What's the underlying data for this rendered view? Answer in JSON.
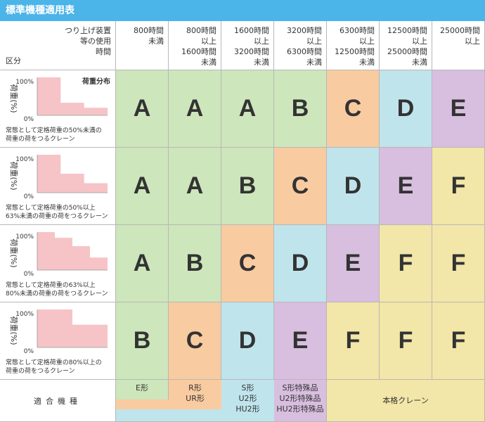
{
  "title": "標準機種適用表",
  "header": {
    "corner_top": [
      "つり上げ装置",
      "等の使用",
      "時間"
    ],
    "corner_bottom": "区分",
    "columns": [
      [
        "800時間",
        "未満"
      ],
      [
        "800時間",
        "以上",
        "1600時間",
        "未満"
      ],
      [
        "1600時間",
        "以上",
        "3200時間",
        "未満"
      ],
      [
        "3200時間",
        "以上",
        "6300時間",
        "未満"
      ],
      [
        "6300時間",
        "以上",
        "12500時間",
        "未満"
      ],
      [
        "12500時間",
        "以上",
        "25000時間",
        "未満"
      ],
      [
        "25000時間",
        "以上"
      ]
    ]
  },
  "rows": [
    {
      "chart_title": "荷重分布",
      "axis_label": "荷重(%)",
      "y_max": "100%",
      "y_min": "0%",
      "load_steps": [
        1.0,
        0.33,
        0.2
      ],
      "desc": [
        "常態として定格荷重の50%未満の",
        "荷重の荷をつるクレーン"
      ],
      "grades": [
        "A",
        "A",
        "A",
        "B",
        "C",
        "D",
        "E"
      ]
    },
    {
      "axis_label": "荷重(%)",
      "y_max": "100%",
      "y_min": "0%",
      "load_steps": [
        1.0,
        0.5,
        0.25
      ],
      "desc": [
        "常態として定格荷重の50%以上",
        "63%未満の荷重の荷をつるクレーン"
      ],
      "grades": [
        "A",
        "A",
        "B",
        "C",
        "D",
        "E",
        "F"
      ]
    },
    {
      "axis_label": "荷重(%)",
      "y_max": "100%",
      "y_min": "0%",
      "load_steps": [
        1.0,
        0.85,
        0.63,
        0.33
      ],
      "desc": [
        "常態として定格荷重の63%以上",
        "80%未満の荷重の荷をつるクレーン"
      ],
      "grades": [
        "A",
        "B",
        "C",
        "D",
        "E",
        "F",
        "F"
      ]
    },
    {
      "axis_label": "荷重(%)",
      "y_max": "100%",
      "y_min": "0%",
      "load_steps": [
        1.0,
        0.6
      ],
      "desc": [
        "常態として定格荷重の80%以上の",
        "荷重の荷をつるクレーン"
      ],
      "grades": [
        "B",
        "C",
        "D",
        "E",
        "F",
        "F",
        "F"
      ]
    }
  ],
  "suitable": {
    "label": "適合機種",
    "groups": [
      {
        "lines": [
          "E形"
        ]
      },
      {
        "lines": [
          "R形",
          "UR形"
        ]
      },
      {
        "lines": [
          "S形",
          "U2形",
          "HU2形"
        ]
      },
      {
        "lines": [
          "S形特殊品",
          "U2形特殊品",
          "HU2形特殊品"
        ]
      },
      {
        "lines": [
          "本格クレーン"
        ]
      }
    ]
  },
  "colors": {
    "A": "#cde6bb",
    "B": "#cde6bb",
    "C": "#f9cba0",
    "D": "#bfe4ec",
    "E": "#d8bedf",
    "F": "#f2e6a8",
    "chart_fill": "#f6c4c6",
    "header_bar": "#4bb4e8"
  }
}
